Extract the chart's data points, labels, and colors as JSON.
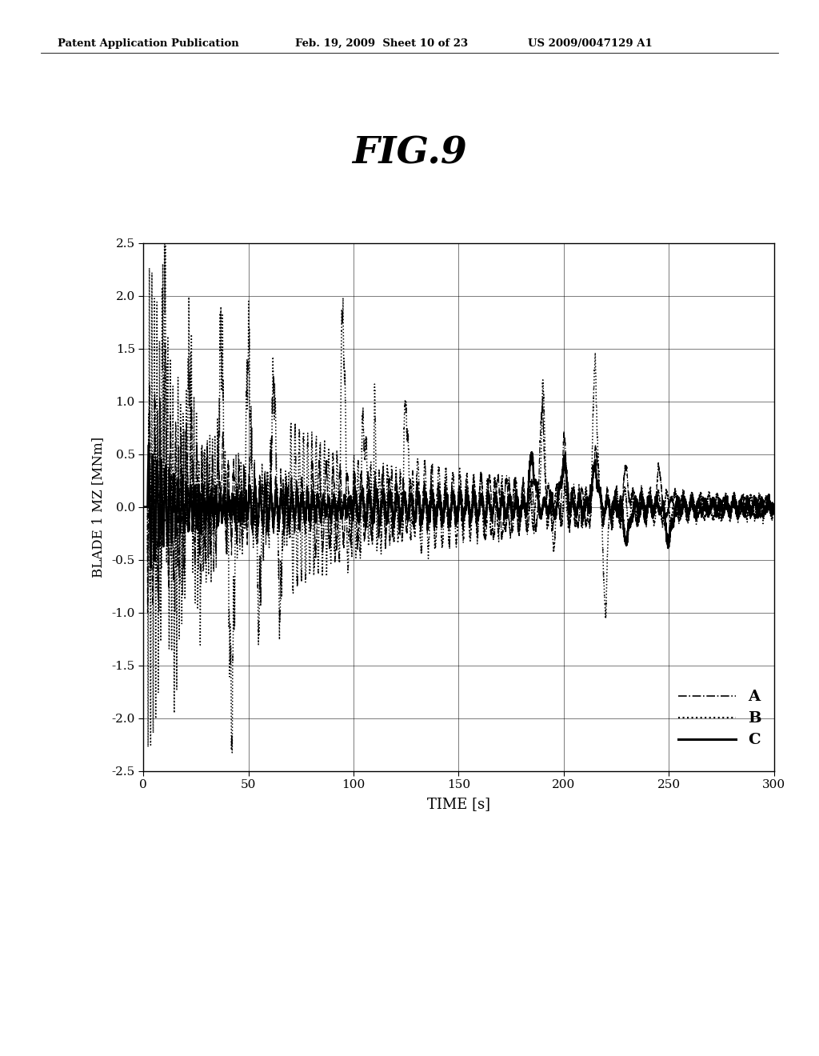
{
  "title": "FIG.9",
  "header_left": "Patent Application Publication",
  "header_mid": "Feb. 19, 2009  Sheet 10 of 23",
  "header_right": "US 2009/0047129 A1",
  "xlabel": "TIME [s]",
  "ylabel": "BLADE 1 MZ [MNm]",
  "xlim": [
    0,
    300
  ],
  "ylim": [
    -2.5,
    2.5
  ],
  "xticks": [
    0,
    50,
    100,
    150,
    200,
    250,
    300
  ],
  "yticks": [
    -2.5,
    -2.0,
    -1.5,
    -1.0,
    -0.5,
    0.0,
    0.5,
    1.0,
    1.5,
    2.0,
    2.5
  ],
  "legend_labels": [
    "A",
    "B",
    "C"
  ],
  "bg_color": "#ffffff",
  "line_color": "#000000"
}
